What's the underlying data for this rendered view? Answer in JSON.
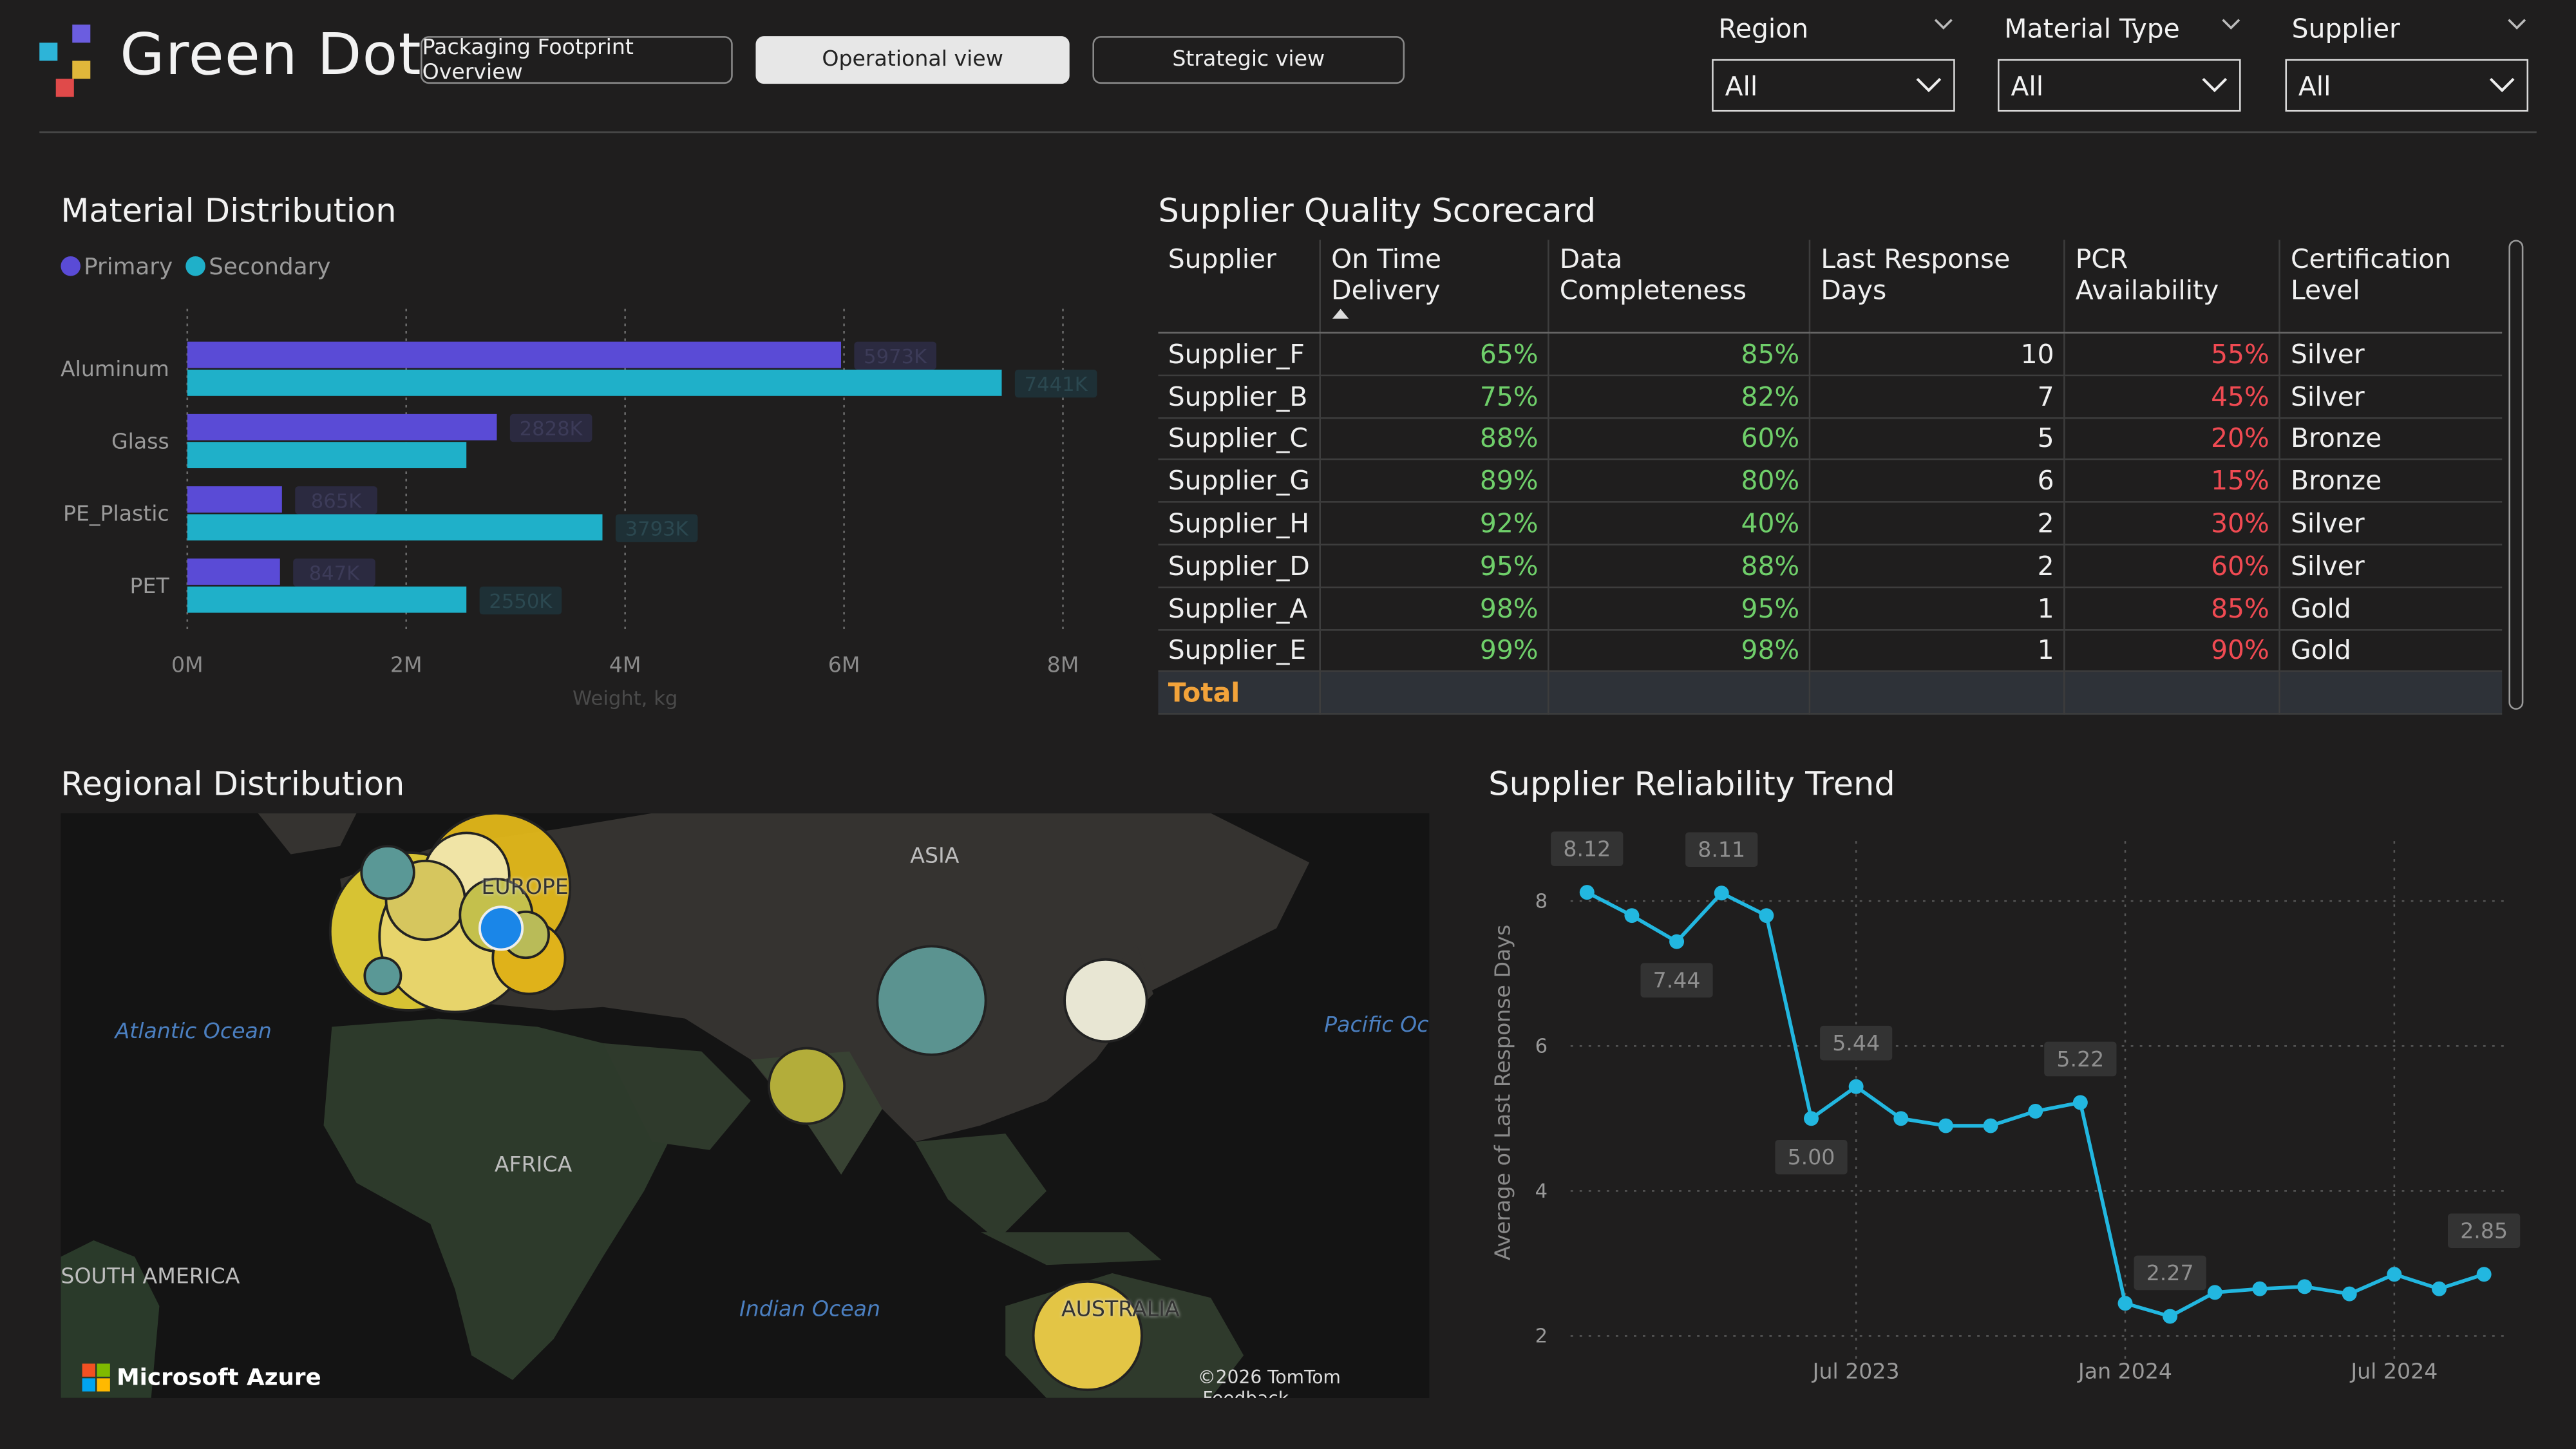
{
  "header": {
    "brand": "Green Dot",
    "nav": [
      "Packaging Footprint Overview",
      "Operational view",
      "Strategic view"
    ],
    "active_nav": 1,
    "slicers": [
      {
        "label": "Region",
        "value": "All"
      },
      {
        "label": "Material Type",
        "value": "All"
      },
      {
        "label": "Supplier",
        "value": "All"
      }
    ],
    "logo_colors": [
      "#6b5de0",
      "#2db4d8",
      "#e0b73a",
      "#e04a4a"
    ]
  },
  "material": {
    "title": "Material Distribution",
    "legend": [
      {
        "name": "Primary",
        "color": "#5a4bd6"
      },
      {
        "name": "Secondary",
        "color": "#1fb0c9"
      }
    ]
  },
  "chart_data": [
    {
      "type": "bar",
      "orientation": "horizontal",
      "categories": [
        "Aluminum",
        "Glass",
        "PE_Plastic",
        "PET"
      ],
      "series": [
        {
          "name": "Primary",
          "values": [
            5973,
            2828,
            865,
            847
          ],
          "labels": [
            "5973K",
            "2828K",
            "865K",
            "847K"
          ]
        },
        {
          "name": "Secondary",
          "values": [
            7441,
            2550,
            3793,
            2550
          ],
          "labels": [
            "7441K",
            "",
            "3793K",
            "2550K"
          ]
        }
      ],
      "xlabel": "Weight, kg",
      "xlim": [
        0,
        8000
      ],
      "xticks": [
        "0M",
        "2M",
        "4M",
        "6M",
        "8M"
      ],
      "grid": true
    },
    {
      "type": "line",
      "title": "Supplier Reliability Trend",
      "ylabel": "Average of Last Response Days",
      "ylim": [
        1.8,
        8.6
      ],
      "yticks": [
        2,
        4,
        6,
        8
      ],
      "xticks": [
        "Jul 2023",
        "Jan 2024",
        "Jul 2024"
      ],
      "x": [
        "2023-01",
        "2023-02",
        "2023-03",
        "2023-04",
        "2023-05",
        "2023-06",
        "2023-07",
        "2023-08",
        "2023-09",
        "2023-10",
        "2023-11",
        "2023-12",
        "2024-01",
        "2024-02",
        "2024-03",
        "2024-04",
        "2024-05",
        "2024-06",
        "2024-07",
        "2024-08",
        "2024-09"
      ],
      "series": [
        {
          "name": "Average of Last Response Days",
          "values": [
            8.12,
            7.8,
            7.44,
            8.11,
            7.8,
            5.0,
            5.44,
            5.0,
            4.9,
            4.9,
            5.1,
            5.22,
            2.45,
            2.27,
            2.6,
            2.65,
            2.68,
            2.58,
            2.85,
            2.65,
            2.85
          ]
        }
      ],
      "point_labels": [
        {
          "x": "2023-01",
          "text": "8.12"
        },
        {
          "x": "2023-03",
          "text": "7.44"
        },
        {
          "x": "2023-04",
          "text": "8.11"
        },
        {
          "x": "2023-06",
          "text": "5.00"
        },
        {
          "x": "2023-07",
          "text": "5.44"
        },
        {
          "x": "2023-12",
          "text": "5.22"
        },
        {
          "x": "2024-02",
          "text": "2.27"
        },
        {
          "x": "2024-09",
          "text": "2.85"
        }
      ],
      "grid": true,
      "color": "#22b7e0"
    }
  ],
  "scorecard": {
    "title": "Supplier Quality Scorecard",
    "columns": [
      "Supplier",
      "On Time Delivery",
      "Data Completeness",
      "Last Response Days",
      "PCR Availability",
      "Certification Level"
    ],
    "rows": [
      [
        "Supplier_F",
        "65%",
        "85%",
        "10",
        "55%",
        "Silver"
      ],
      [
        "Supplier_B",
        "75%",
        "82%",
        "7",
        "45%",
        "Silver"
      ],
      [
        "Supplier_C",
        "88%",
        "60%",
        "5",
        "20%",
        "Bronze"
      ],
      [
        "Supplier_G",
        "89%",
        "80%",
        "6",
        "15%",
        "Bronze"
      ],
      [
        "Supplier_H",
        "92%",
        "40%",
        "2",
        "30%",
        "Silver"
      ],
      [
        "Supplier_D",
        "95%",
        "88%",
        "2",
        "60%",
        "Silver"
      ],
      [
        "Supplier_A",
        "98%",
        "95%",
        "1",
        "85%",
        "Gold"
      ],
      [
        "Supplier_E",
        "99%",
        "98%",
        "1",
        "90%",
        "Gold"
      ]
    ],
    "total_label": "Total"
  },
  "regional": {
    "title": "Regional Distribution",
    "labels": [
      "ASIA",
      "EUROPE",
      "AFRICA",
      "SOUTH AMERICA",
      "AUSTRALIA",
      "Atlantic Ocean",
      "Pacific Oc",
      "Indian Ocean"
    ],
    "brand": "Microsoft Azure",
    "copyright": "©2026 TomTom",
    "feedback": "Feedback"
  }
}
